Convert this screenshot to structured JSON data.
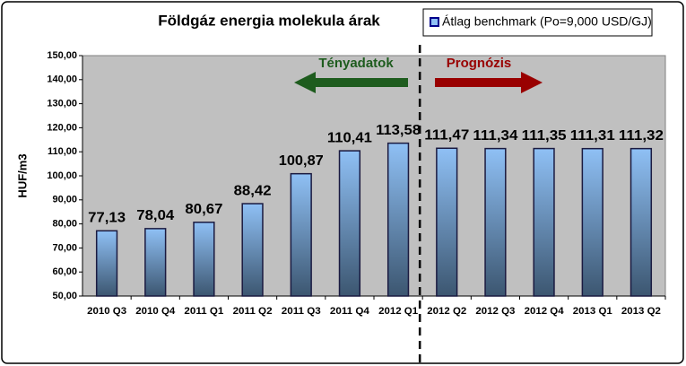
{
  "chart_data": {
    "type": "bar",
    "title": "Földgáz energia molekula árak",
    "y_label": "HUF/m3",
    "categories": [
      "2010 Q3",
      "2010 Q4",
      "2011 Q1",
      "2011 Q2",
      "2011 Q3",
      "2011 Q4",
      "2012 Q1",
      "2012 Q2",
      "2012 Q3",
      "2012 Q4",
      "2013 Q1",
      "2013 Q2"
    ],
    "series": [
      {
        "name": "Átlag benchmark (Po=9,000 USD/GJ)",
        "color": "#8fc0f5",
        "values": [
          77.13,
          78.04,
          80.67,
          88.42,
          100.87,
          110.41,
          113.58,
          111.47,
          111.34,
          111.35,
          111.31,
          111.32
        ],
        "value_labels": [
          "77,13",
          "78,04",
          "80,67",
          "88,42",
          "100,87",
          "110,41",
          "113,58",
          "111,47",
          "111,34",
          "111,35",
          "111,31",
          "111,32"
        ]
      }
    ],
    "ylim": [
      50,
      150
    ],
    "yticks": [
      {
        "value": 50,
        "label": "50,00"
      },
      {
        "value": 60,
        "label": "60,00"
      },
      {
        "value": 70,
        "label": "70,00"
      },
      {
        "value": 80,
        "label": "80,00"
      },
      {
        "value": 90,
        "label": "90,00"
      },
      {
        "value": 100,
        "label": "100,00"
      },
      {
        "value": 110,
        "label": "110,00"
      },
      {
        "value": 120,
        "label": "120,00"
      },
      {
        "value": 130,
        "label": "130,00"
      },
      {
        "value": 140,
        "label": "140,00"
      },
      {
        "value": 150,
        "label": "150,00"
      }
    ],
    "grid": false,
    "annotations": [
      {
        "text": "Tényadatok",
        "color": "#1e5c1e"
      },
      {
        "text": "Prognózis",
        "color": "#990000"
      }
    ]
  }
}
